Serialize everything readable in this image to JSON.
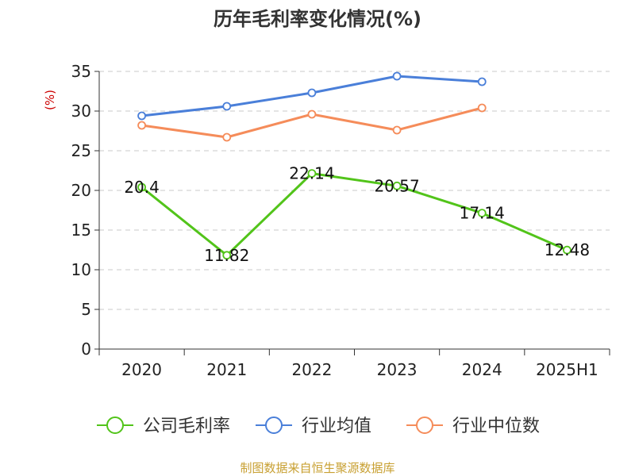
{
  "chart_data": {
    "type": "line",
    "title": "历年毛利率变化情况(%)",
    "ylabel": "(%)",
    "xlabel": "",
    "categories": [
      "2020",
      "2021",
      "2022",
      "2023",
      "2024",
      "2025H1"
    ],
    "ylim": [
      0,
      35
    ],
    "yticks": [
      0,
      5,
      10,
      15,
      20,
      25,
      30,
      35
    ],
    "grid": true,
    "legend_position": "bottom",
    "series": [
      {
        "name": "公司毛利率",
        "color": "#52c41a",
        "values": [
          20.4,
          11.82,
          22.14,
          20.57,
          17.14,
          12.48
        ],
        "labels": [
          "20.4",
          "11.82",
          "22.14",
          "20.57",
          "17.14",
          "12.48"
        ]
      },
      {
        "name": "行业均值",
        "color": "#4a7fd9",
        "values": [
          29.4,
          30.6,
          32.3,
          34.4,
          33.7,
          null
        ]
      },
      {
        "name": "行业中位数",
        "color": "#f58c5a",
        "values": [
          28.2,
          26.7,
          29.6,
          27.6,
          30.4,
          null
        ]
      }
    ]
  },
  "source": "制图数据来自恒生聚源数据库"
}
